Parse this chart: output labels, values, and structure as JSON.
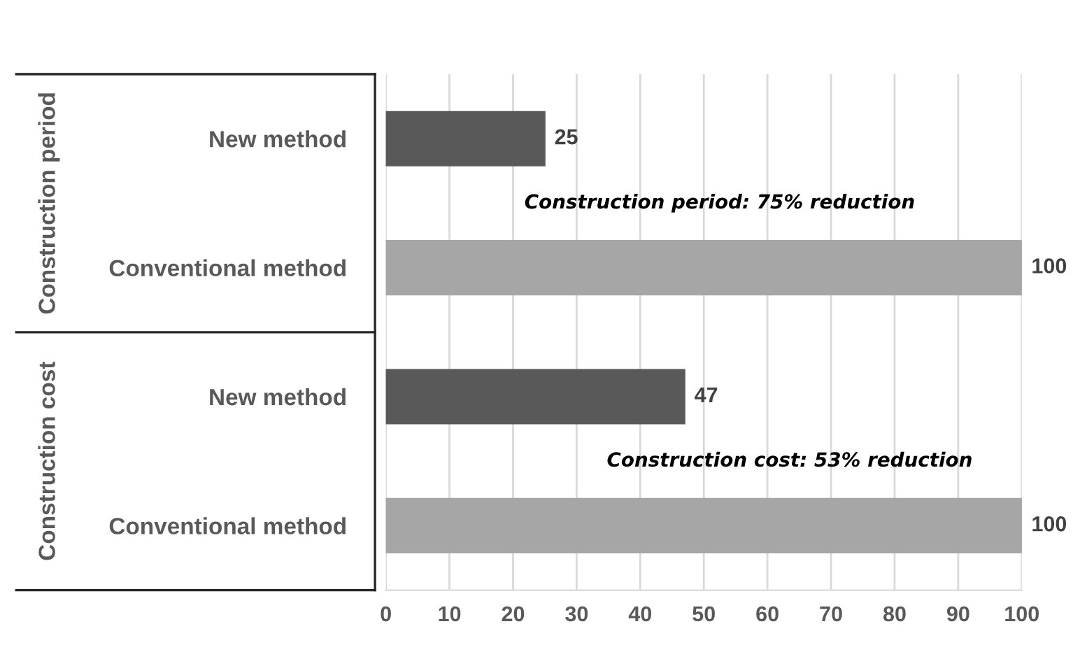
{
  "chart_data": {
    "type": "bar",
    "orientation": "horizontal",
    "categories": [
      "New method",
      "Conventional method",
      "New method",
      "Conventional method"
    ],
    "values": [
      25,
      100,
      47,
      100
    ],
    "colors": [
      "#595959",
      "#a6a6a6",
      "#595959",
      "#a6a6a6"
    ],
    "data_labels": true,
    "xlim": [
      0,
      100
    ],
    "xticks": [
      0,
      10,
      20,
      30,
      40,
      50,
      60,
      70,
      80,
      90,
      100
    ],
    "grid": "x",
    "legend": false,
    "annotations": [
      "Construction period",
      "Construction cost",
      "Construction period: 75% reduction",
      "Construction cost: 53% reduction"
    ]
  }
}
